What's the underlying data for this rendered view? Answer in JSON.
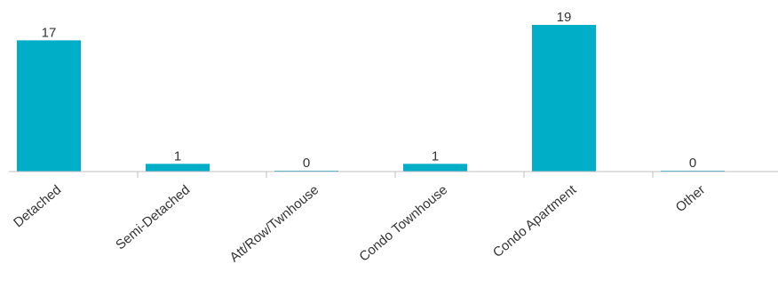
{
  "chart_data": {
    "type": "bar",
    "title": "",
    "xlabel": "",
    "ylabel": "",
    "categories": [
      "Detached",
      "Semi-Detached",
      "Att/Row/Twnhouse",
      "Condo Townhouse",
      "Condo Apartment",
      "Other"
    ],
    "values": [
      17,
      1,
      0,
      1,
      19,
      0
    ],
    "data_labels": [
      "17",
      "1",
      "0",
      "1",
      "19",
      "0"
    ],
    "ylim": [
      0,
      19
    ],
    "grid": false,
    "legend": "none",
    "bar_color": "#00AEC7",
    "axis_color": "#BFBFBF",
    "text_color": "#333333"
  }
}
